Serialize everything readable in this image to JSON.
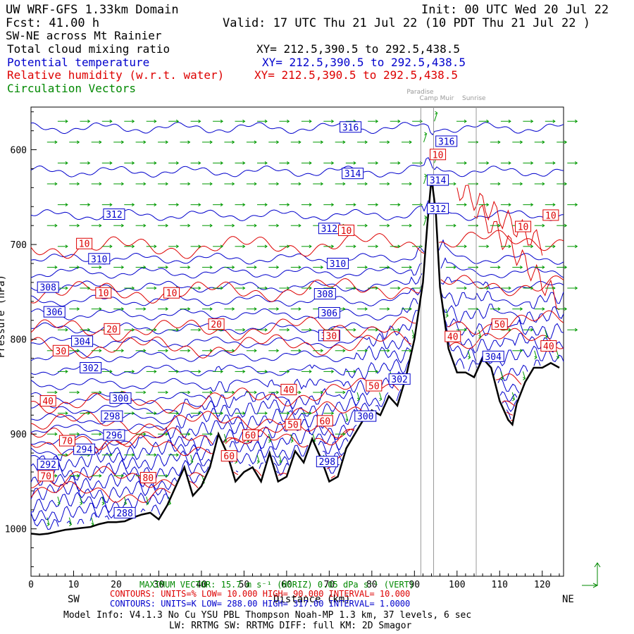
{
  "header": {
    "title_left": "UW WRF-GFS 1.33km Domain",
    "init": "Init: 00 UTC Wed 20 Jul 22",
    "fcst": "Fcst:   41.00 h",
    "valid": "Valid: 17 UTC Thu 21 Jul 22   (10 PDT Thu 21 Jul 22  )",
    "cross_section": "SW-NE across Mt Rainier",
    "fields": [
      {
        "label": "Total cloud mixing ratio",
        "xy": "XY= 212.5,390.5 to 292.5,438.5",
        "color": "#000000"
      },
      {
        "label": "Potential temperature",
        "xy": "XY= 212.5,390.5 to 292.5,438.5",
        "color": "#0000cc"
      },
      {
        "label": "Relative humidity (w.r.t. water)",
        "xy": "XY= 212.5,390.5 to 292.5,438.5",
        "color": "#dd0000"
      },
      {
        "label": "Circulation Vectors",
        "xy": "",
        "color": "#008800"
      }
    ]
  },
  "chart_data": {
    "type": "cross-section",
    "xlabel": "Distance (km)",
    "ylabel": "Pressure (hPa)",
    "xlim": [
      0,
      125
    ],
    "ylim": [
      1050,
      555
    ],
    "x_ticks": [
      0,
      10,
      20,
      30,
      40,
      50,
      60,
      70,
      80,
      90,
      100,
      110,
      120
    ],
    "y_ticks": [
      600,
      700,
      800,
      900,
      1000
    ],
    "y_tick_labels": [
      "600",
      "700",
      "800",
      "900",
      "1000"
    ],
    "left_end_label": "SW",
    "right_end_label": "NE",
    "location_markers": [
      {
        "name": "Paradise",
        "x": 91.5
      },
      {
        "name": "Camp Muir",
        "x": 94.5
      },
      {
        "name": "Sunrise",
        "x": 104.5
      }
    ],
    "terrain": {
      "x": [
        0,
        2,
        4,
        6,
        8,
        10,
        12,
        14,
        16,
        18,
        20,
        22,
        24,
        26,
        28,
        30,
        32,
        34,
        36,
        38,
        40,
        42,
        44,
        46,
        48,
        50,
        52,
        54,
        56,
        58,
        60,
        62,
        64,
        66,
        68,
        70,
        72,
        74,
        76,
        78,
        80,
        82,
        84,
        86,
        88,
        90,
        92,
        93,
        94,
        95,
        96,
        98,
        100,
        102,
        104,
        106,
        108,
        110,
        112,
        113,
        114,
        116,
        118,
        120,
        122,
        124
      ],
      "p": [
        1005,
        1006,
        1005,
        1003,
        1001,
        1000,
        999,
        998,
        995,
        993,
        993,
        992,
        988,
        985,
        983,
        990,
        975,
        955,
        935,
        965,
        955,
        935,
        900,
        920,
        950,
        940,
        935,
        950,
        920,
        950,
        945,
        918,
        930,
        905,
        925,
        950,
        945,
        915,
        900,
        885,
        875,
        880,
        860,
        870,
        840,
        800,
        740,
        680,
        630,
        665,
        745,
        810,
        835,
        835,
        840,
        820,
        830,
        865,
        885,
        890,
        868,
        845,
        830,
        830,
        825,
        830
      ]
    },
    "theta_contours_K": {
      "low": 288,
      "high": 317,
      "interval": 1,
      "labels": [
        {
          "value": "316",
          "x": 75,
          "p": 576
        },
        {
          "value": "316",
          "x": 97.5,
          "p": 591
        },
        {
          "value": "314",
          "x": 75.5,
          "p": 625
        },
        {
          "value": "314",
          "x": 95.5,
          "p": 632
        },
        {
          "value": "312",
          "x": 19.5,
          "p": 668
        },
        {
          "value": "312",
          "x": 70,
          "p": 683
        },
        {
          "value": "312",
          "x": 95.5,
          "p": 662
        },
        {
          "value": "310",
          "x": 16,
          "p": 715
        },
        {
          "value": "310",
          "x": 72,
          "p": 720
        },
        {
          "value": "308",
          "x": 4,
          "p": 745
        },
        {
          "value": "308",
          "x": 69,
          "p": 752
        },
        {
          "value": "306",
          "x": 5.5,
          "p": 771
        },
        {
          "value": "306",
          "x": 70,
          "p": 772
        },
        {
          "value": "304",
          "x": 12,
          "p": 802
        },
        {
          "value": "304",
          "x": 70,
          "p": 796
        },
        {
          "value": "304",
          "x": 108.5,
          "p": 818
        },
        {
          "value": "302",
          "x": 14,
          "p": 830
        },
        {
          "value": "302",
          "x": 86.5,
          "p": 842
        },
        {
          "value": "300",
          "x": 21,
          "p": 862
        },
        {
          "value": "300",
          "x": 78.5,
          "p": 881
        },
        {
          "value": "298",
          "x": 19,
          "p": 881
        },
        {
          "value": "298",
          "x": 69.5,
          "p": 929
        },
        {
          "value": "296",
          "x": 19.5,
          "p": 901
        },
        {
          "value": "294",
          "x": 12.5,
          "p": 916
        },
        {
          "value": "292",
          "x": 4,
          "p": 932
        },
        {
          "value": "288",
          "x": 22,
          "p": 983
        }
      ]
    },
    "rh_contours_percent": {
      "low": 10,
      "high": 90,
      "interval": 10,
      "labels": [
        {
          "value": "10",
          "x": 12.5,
          "p": 699
        },
        {
          "value": "10",
          "x": 17,
          "p": 751
        },
        {
          "value": "10",
          "x": 33,
          "p": 751
        },
        {
          "value": "10",
          "x": 74,
          "p": 685
        },
        {
          "value": "10",
          "x": 95.5,
          "p": 605
        },
        {
          "value": "10",
          "x": 115.5,
          "p": 681
        },
        {
          "value": "10",
          "x": 122,
          "p": 669
        },
        {
          "value": "20",
          "x": 19,
          "p": 789
        },
        {
          "value": "20",
          "x": 43.5,
          "p": 784
        },
        {
          "value": "30",
          "x": 7,
          "p": 812
        },
        {
          "value": "30",
          "x": 70.5,
          "p": 796
        },
        {
          "value": "40",
          "x": 4,
          "p": 865
        },
        {
          "value": "40",
          "x": 60.5,
          "p": 853
        },
        {
          "value": "40",
          "x": 99,
          "p": 797
        },
        {
          "value": "40",
          "x": 121.5,
          "p": 807
        },
        {
          "value": "50",
          "x": 61.5,
          "p": 890
        },
        {
          "value": "50",
          "x": 80.5,
          "p": 849
        },
        {
          "value": "50",
          "x": 110,
          "p": 784
        },
        {
          "value": "60",
          "x": 51.5,
          "p": 901
        },
        {
          "value": "60",
          "x": 69,
          "p": 886
        },
        {
          "value": "60",
          "x": 46.5,
          "p": 923
        },
        {
          "value": "70",
          "x": 8.5,
          "p": 907
        },
        {
          "value": "70",
          "x": 3.5,
          "p": 944
        },
        {
          "value": "80",
          "x": 27.5,
          "p": 946
        }
      ]
    },
    "circulation_vectors": {
      "max_horizontal": "15.7 m s",
      "max_vertical": "0.05 dPa s"
    },
    "contour_legend": [
      {
        "field": "RH",
        "line": "CONTOURS:  UNITS=%  LOW=   10.000           HIGH=   90.000           INTERVAL=    10.000",
        "color": "#dd0000"
      },
      {
        "field": "theta",
        "line": "CONTOURS:  UNITS=K  LOW=  288.00           HIGH=  317.00           INTERVAL=    1.0000",
        "color": "#0000cc"
      }
    ]
  },
  "footer": {
    "vector_note": "MAXIMUM VECTOR:  15.7 m s⁻¹ (HORIZ)    0.05 dPa s⁻¹ (VERT)",
    "model_info": "Model Info: V4.1.3    No Cu    YSU PBL  Thompson     Noah-MP    1.3 km,   37 levels,    6 sec",
    "model_info2": "LW: RRTMG SW: RRTMG    DIFF: full    KM: 2D Smagor"
  },
  "colors": {
    "theta": "#0000cc",
    "rh": "#dd0000",
    "vectors": "#009900",
    "terrain": "#000000",
    "markers": "#999999"
  }
}
